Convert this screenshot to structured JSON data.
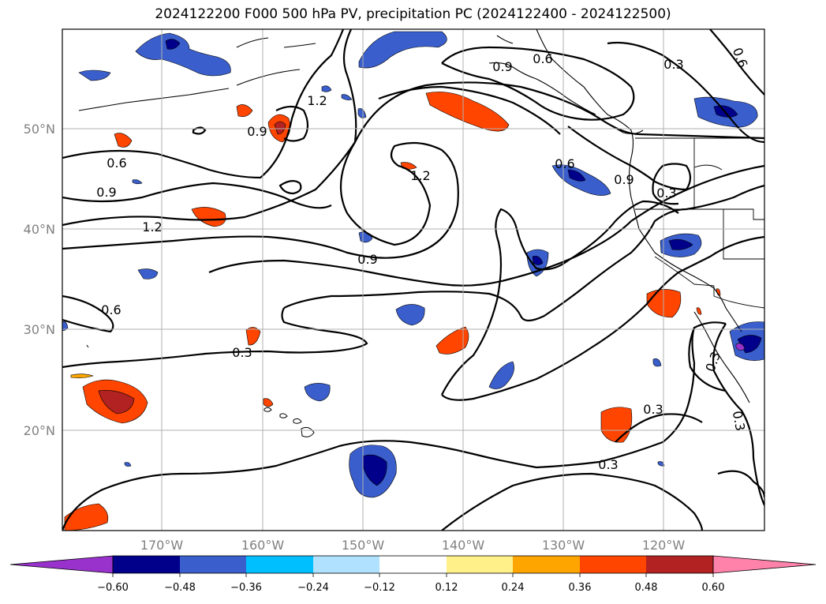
{
  "title": "2024122200 F000 500 hPa PV, precipitation PC (2024122400 - 2024122500)",
  "latitude_labels": [
    "50°N",
    "40°N",
    "30°N",
    "20°N"
  ],
  "longitude_labels": [
    "170°W",
    "160°W",
    "150°W",
    "140°W",
    "130°W",
    "120°W"
  ],
  "contour_labels": [
    "0.9",
    "0.6",
    "1.2",
    "0.9",
    "0.6",
    "0.9",
    "1.2",
    "0.6",
    "0.9",
    "1.2",
    "0.9",
    "0.6",
    "0.3",
    "0.3",
    "0.3",
    "0.3",
    "0.3",
    "0.3",
    "0.6",
    "0.3"
  ],
  "colorbar": {
    "tick_labels": [
      "−0.60",
      "−0.48",
      "−0.36",
      "−0.24",
      "−0.12",
      "0.12",
      "0.24",
      "0.36",
      "0.48",
      "0.60"
    ],
    "colors": [
      "#9932cc",
      "#00008b",
      "#3a5fcd",
      "#00bfff",
      "#b0e2ff",
      "#ffffff",
      "#fff08a",
      "#ffa500",
      "#ff4500",
      "#b22222",
      "#ff82ab"
    ]
  }
}
